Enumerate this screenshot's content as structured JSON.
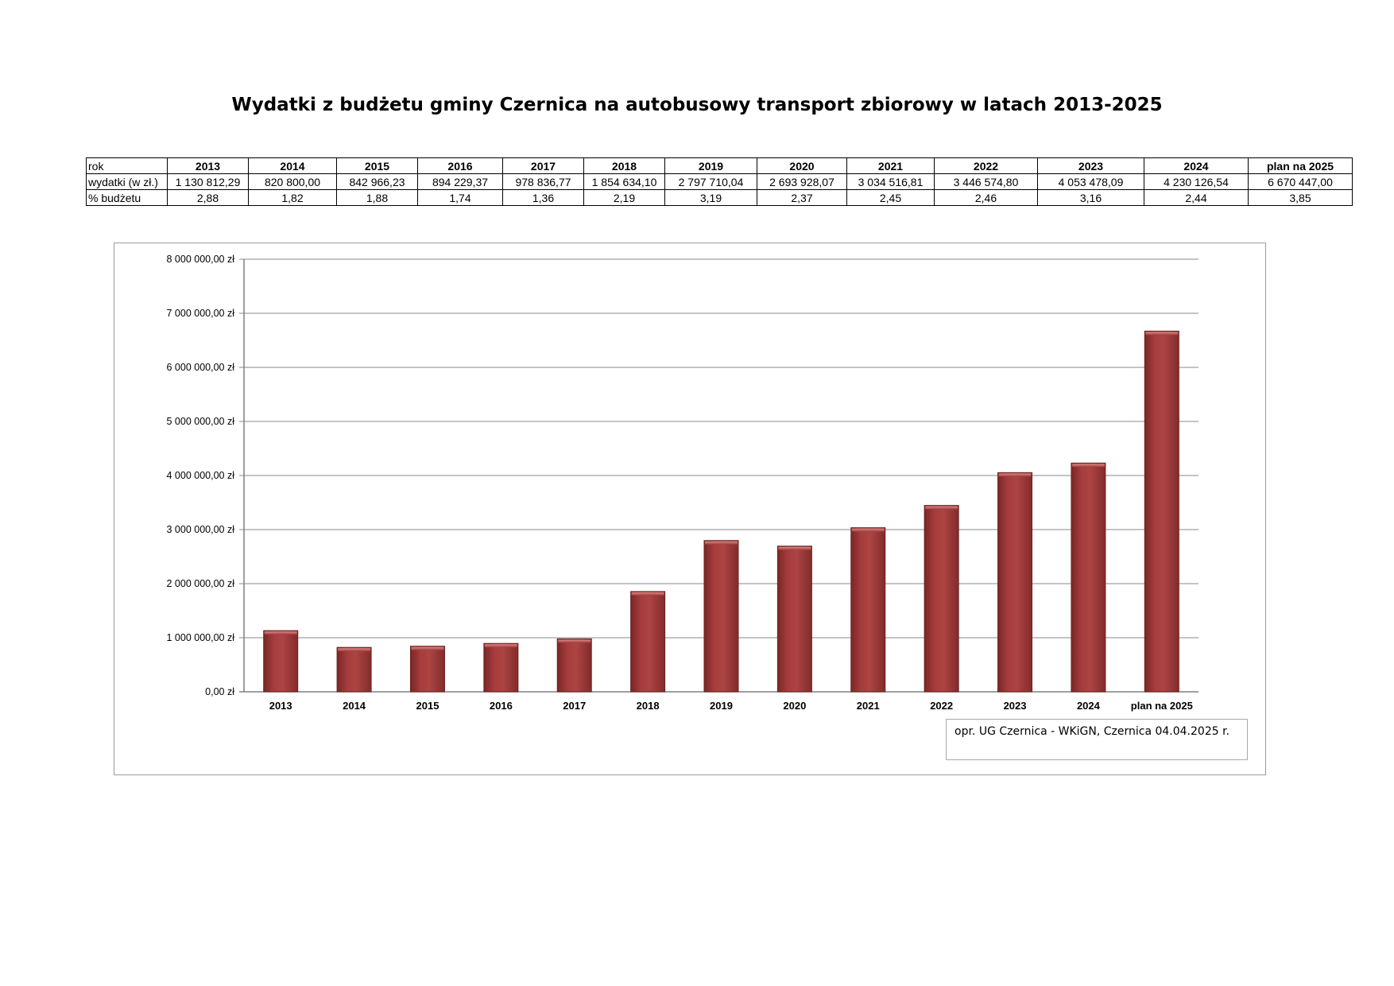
{
  "page": {
    "title": "Wydatki z budżetu gminy Czernica na autobusowy transport zbiorowy w latach 2013-2025",
    "note": "opr. UG Czernica - WKiGN, Czernica 04.04.2025 r."
  },
  "table": {
    "row_labels": [
      "rok",
      "wydatki (w zł.)",
      "% budżetu"
    ],
    "years": [
      "2013",
      "2014",
      "2015",
      "2016",
      "2017",
      "2018",
      "2019",
      "2020",
      "2021",
      "2022",
      "2023",
      "2024",
      "plan na 2025"
    ],
    "expenses": [
      "1 130 812,29",
      "820 800,00",
      "842 966,23",
      "894 229,37",
      "978 836,77",
      "1 854 634,10",
      "2 797 710,04",
      "2 693 928,07",
      "3 034 516,81",
      "3 446 574,80",
      "4 053 478,09",
      "4 230 126,54",
      "6 670 447,00"
    ],
    "budget_pct": [
      "2,88",
      "1,82",
      "1,88",
      "1,74",
      "1,36",
      "2,19",
      "3,19",
      "2,37",
      "2,45",
      "2,46",
      "3,16",
      "2,44",
      "3,85"
    ]
  },
  "chart_data": {
    "type": "bar",
    "categories": [
      "2013",
      "2014",
      "2015",
      "2016",
      "2017",
      "2018",
      "2019",
      "2020",
      "2021",
      "2022",
      "2023",
      "2024",
      "plan na 2025"
    ],
    "values": [
      1130812.29,
      820800.0,
      842966.23,
      894229.37,
      978836.77,
      1854634.1,
      2797710.04,
      2693928.07,
      3034516.81,
      3446574.8,
      4053478.09,
      4230126.54,
      6670447.0
    ],
    "ylim": [
      0,
      8000000
    ],
    "yticks": [
      0,
      1000000,
      2000000,
      3000000,
      4000000,
      5000000,
      6000000,
      7000000,
      8000000
    ],
    "ytick_labels": [
      "0,00 zł",
      "1 000 000,00 zł",
      "2 000 000,00 zł",
      "3 000 000,00 zł",
      "4 000 000,00 zł",
      "5 000 000,00 zł",
      "6 000 000,00 zł",
      "7 000 000,00 zł",
      "8 000 000,00 zł"
    ],
    "grid": true,
    "legend": "none",
    "bar_color": "#a23a3a",
    "bar_edge_color": "#6e2020"
  }
}
